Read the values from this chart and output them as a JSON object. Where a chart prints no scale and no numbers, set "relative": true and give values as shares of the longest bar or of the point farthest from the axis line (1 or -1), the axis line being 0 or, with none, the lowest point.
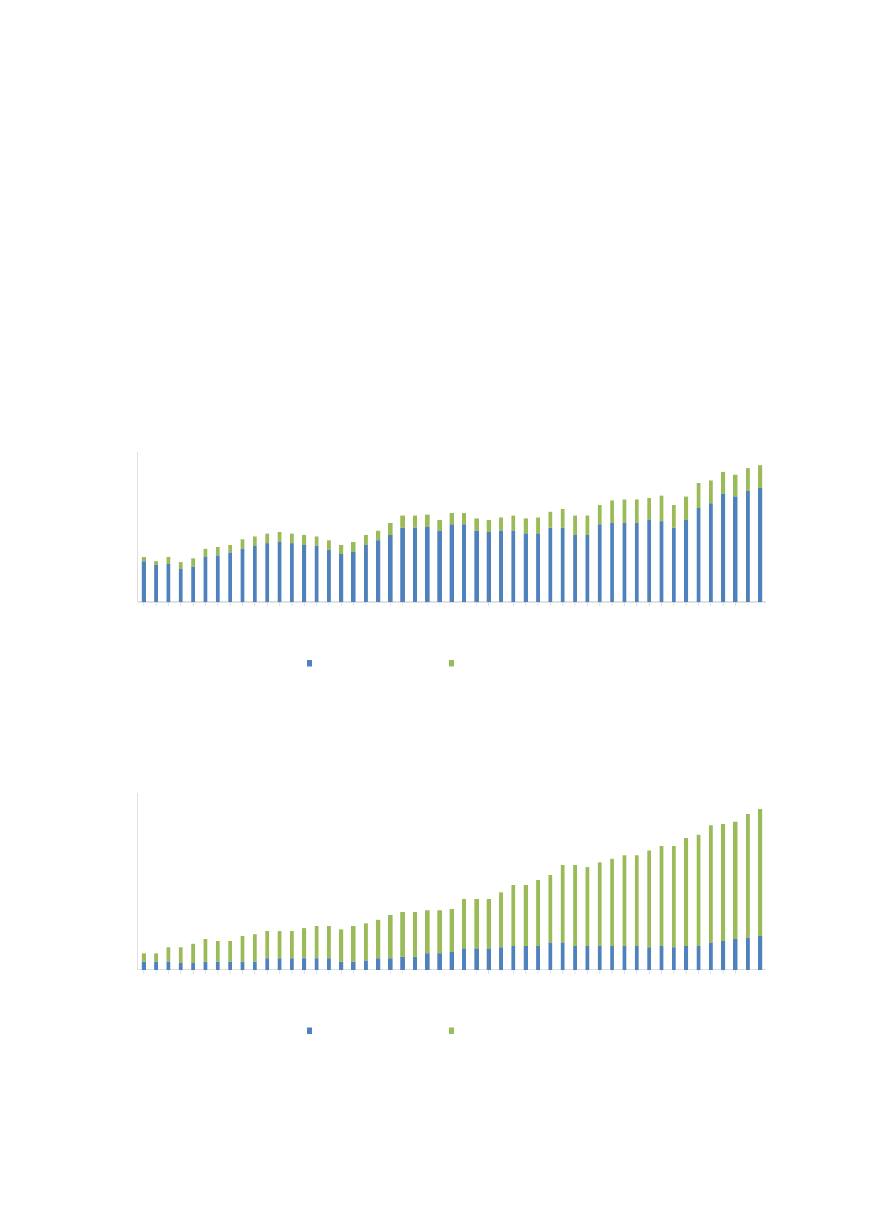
{
  "chart_data": [
    {
      "type": "bar",
      "stacked": true,
      "relative": true,
      "categories": [
        null,
        null,
        null,
        null,
        null,
        null,
        null,
        null,
        null,
        null,
        null,
        null,
        null,
        null,
        null,
        null,
        null,
        null,
        null,
        null,
        null,
        null,
        null,
        null,
        null,
        null,
        null,
        null,
        null,
        null,
        null,
        null,
        null,
        null,
        null,
        null,
        null,
        null,
        null,
        null,
        null,
        null,
        null,
        null,
        null,
        null,
        null,
        null,
        null,
        null,
        null
      ],
      "series": [
        {
          "color": "#4f81bd",
          "values": [
            0.3,
            0.27,
            0.28,
            0.24,
            0.26,
            0.33,
            0.34,
            0.36,
            0.39,
            0.41,
            0.43,
            0.44,
            0.43,
            0.42,
            0.41,
            0.38,
            0.35,
            0.37,
            0.42,
            0.45,
            0.49,
            0.54,
            0.54,
            0.55,
            0.52,
            0.57,
            0.57,
            0.52,
            0.51,
            0.52,
            0.52,
            0.5,
            0.5,
            0.54,
            0.54,
            0.49,
            0.49,
            0.57,
            0.58,
            0.58,
            0.58,
            0.6,
            0.59,
            0.54,
            0.6,
            0.69,
            0.72,
            0.79,
            0.77,
            0.81,
            0.83
          ]
        },
        {
          "color": "#9bbb59",
          "values": [
            0.03,
            0.03,
            0.05,
            0.05,
            0.06,
            0.06,
            0.06,
            0.06,
            0.07,
            0.07,
            0.07,
            0.07,
            0.07,
            0.07,
            0.07,
            0.07,
            0.07,
            0.07,
            0.07,
            0.07,
            0.09,
            0.09,
            0.09,
            0.09,
            0.08,
            0.08,
            0.08,
            0.09,
            0.09,
            0.1,
            0.11,
            0.11,
            0.12,
            0.12,
            0.14,
            0.14,
            0.14,
            0.14,
            0.16,
            0.17,
            0.17,
            0.16,
            0.19,
            0.17,
            0.17,
            0.18,
            0.17,
            0.16,
            0.16,
            0.17,
            0.17
          ]
        }
      ]
    },
    {
      "type": "bar",
      "stacked": true,
      "relative": true,
      "categories": [
        null,
        null,
        null,
        null,
        null,
        null,
        null,
        null,
        null,
        null,
        null,
        null,
        null,
        null,
        null,
        null,
        null,
        null,
        null,
        null,
        null,
        null,
        null,
        null,
        null,
        null,
        null,
        null,
        null,
        null,
        null,
        null,
        null,
        null,
        null,
        null,
        null,
        null,
        null,
        null,
        null,
        null,
        null,
        null,
        null,
        null,
        null,
        null,
        null,
        null,
        null
      ],
      "series": [
        {
          "color": "#4f81bd",
          "values": [
            0.05,
            0.05,
            0.05,
            0.04,
            0.04,
            0.05,
            0.05,
            0.05,
            0.05,
            0.05,
            0.07,
            0.07,
            0.07,
            0.07,
            0.07,
            0.07,
            0.05,
            0.05,
            0.06,
            0.07,
            0.07,
            0.08,
            0.08,
            0.1,
            0.1,
            0.11,
            0.13,
            0.13,
            0.13,
            0.14,
            0.15,
            0.15,
            0.15,
            0.17,
            0.17,
            0.15,
            0.15,
            0.15,
            0.15,
            0.15,
            0.15,
            0.14,
            0.15,
            0.14,
            0.15,
            0.15,
            0.17,
            0.18,
            0.19,
            0.2,
            0.21
          ]
        },
        {
          "color": "#9bbb59",
          "values": [
            0.05,
            0.05,
            0.09,
            0.1,
            0.12,
            0.14,
            0.13,
            0.13,
            0.16,
            0.17,
            0.17,
            0.17,
            0.17,
            0.19,
            0.2,
            0.2,
            0.2,
            0.22,
            0.23,
            0.24,
            0.27,
            0.28,
            0.28,
            0.27,
            0.27,
            0.27,
            0.31,
            0.31,
            0.31,
            0.34,
            0.38,
            0.38,
            0.41,
            0.42,
            0.48,
            0.5,
            0.49,
            0.52,
            0.54,
            0.56,
            0.56,
            0.6,
            0.62,
            0.63,
            0.67,
            0.69,
            0.73,
            0.73,
            0.73,
            0.77,
            0.79
          ]
        }
      ]
    }
  ]
}
